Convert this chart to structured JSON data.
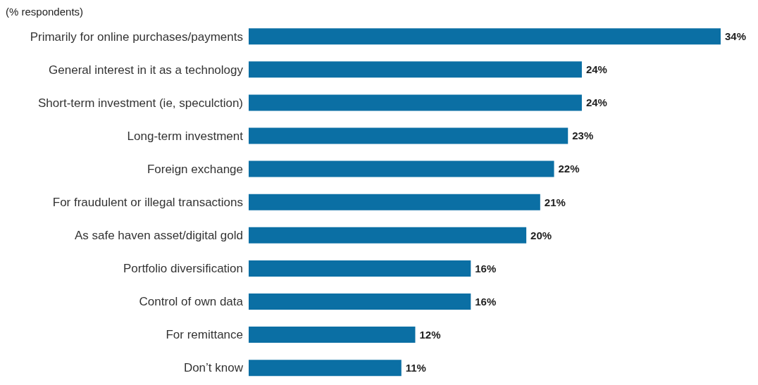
{
  "chart_data": {
    "type": "bar",
    "orientation": "horizontal",
    "subtitle": "(% respondents)",
    "categories": [
      "Primarily for online purchases/payments",
      "General interest in it as a technology",
      "Short-term investment (ie, speculction)",
      "Long-term investment",
      "Foreign exchange",
      "For fraudulent or illegal transactions",
      "As safe haven asset/digital gold",
      "Portfolio diversification",
      "Control of own data",
      "For remittance",
      "Don’t know"
    ],
    "values": [
      34,
      24,
      24,
      23,
      22,
      21,
      20,
      16,
      16,
      12,
      11
    ],
    "value_labels": [
      "34%",
      "24%",
      "24%",
      "23%",
      "22%",
      "21%",
      "20%",
      "16%",
      "16%",
      "12%",
      "11%"
    ],
    "color": "#0b6fa4",
    "grid": false,
    "legend": false
  }
}
